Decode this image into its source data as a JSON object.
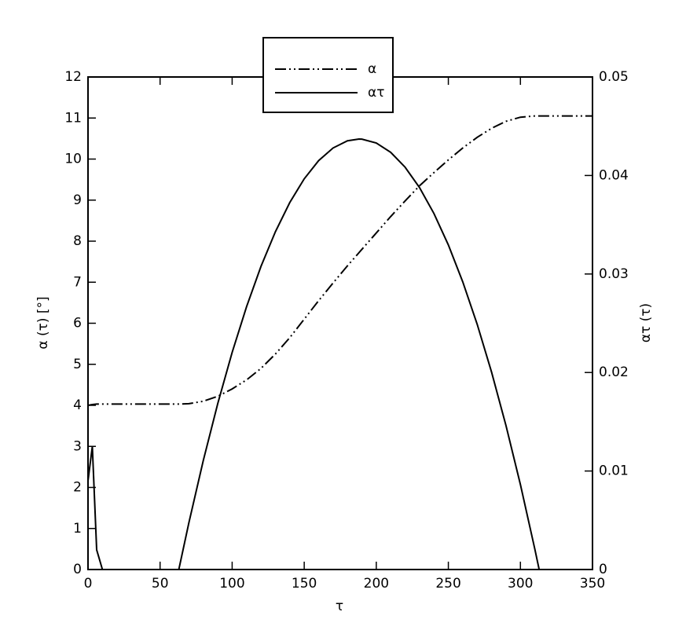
{
  "chart_data": {
    "type": "line",
    "xlabel": "τ",
    "ylabel": "α (τ) [°]",
    "y2label": "ατ (τ)",
    "x": [
      0,
      3,
      6,
      10,
      20,
      30,
      40,
      50,
      60,
      63,
      70,
      80,
      90,
      100,
      110,
      120,
      130,
      140,
      150,
      160,
      170,
      180,
      188,
      190,
      200,
      210,
      220,
      230,
      240,
      250,
      260,
      270,
      280,
      290,
      300,
      310,
      313,
      320,
      330,
      340,
      350
    ],
    "series": [
      {
        "name": "α",
        "color": "#000000",
        "dash": "dashdotdot",
        "axis": "y",
        "values": [
          4.0,
          4.02,
          4.03,
          4.03,
          4.03,
          4.03,
          4.03,
          4.03,
          4.03,
          4.03,
          4.04,
          4.1,
          4.22,
          4.4,
          4.62,
          4.9,
          5.25,
          5.65,
          6.1,
          6.55,
          6.98,
          7.4,
          7.72,
          7.8,
          8.2,
          8.6,
          8.98,
          9.35,
          9.67,
          9.98,
          10.27,
          10.53,
          10.75,
          10.92,
          11.02,
          11.05,
          11.05,
          11.05,
          11.05,
          11.05,
          11.05
        ]
      },
      {
        "name": "ατ",
        "color": "#000000",
        "dash": "solid",
        "axis": "y2",
        "values": [
          0.009,
          0.0125,
          0.002,
          0,
          0,
          0,
          0,
          0,
          0,
          0,
          0.00476,
          0.01108,
          0.01684,
          0.02204,
          0.02668,
          0.03077,
          0.03429,
          0.03726,
          0.03966,
          0.04151,
          0.04279,
          0.04352,
          0.0437,
          0.04369,
          0.0433,
          0.04235,
          0.04084,
          0.03877,
          0.03614,
          0.03295,
          0.0292,
          0.0249,
          0.02003,
          0.0146,
          0.00862,
          0.00207,
          0,
          0,
          0,
          0,
          0
        ]
      }
    ],
    "xlim": [
      0,
      350
    ],
    "xticks": [
      0,
      50,
      100,
      150,
      200,
      250,
      300,
      350
    ],
    "ylim": [
      0,
      12
    ],
    "yticks": [
      0,
      1,
      2,
      3,
      4,
      5,
      6,
      7,
      8,
      9,
      10,
      11,
      12
    ],
    "y2lim": [
      0,
      0.05
    ],
    "y2ticks": [
      0,
      0.01,
      0.02,
      0.03,
      0.04,
      0.05
    ],
    "grid": false,
    "legend": "top"
  }
}
